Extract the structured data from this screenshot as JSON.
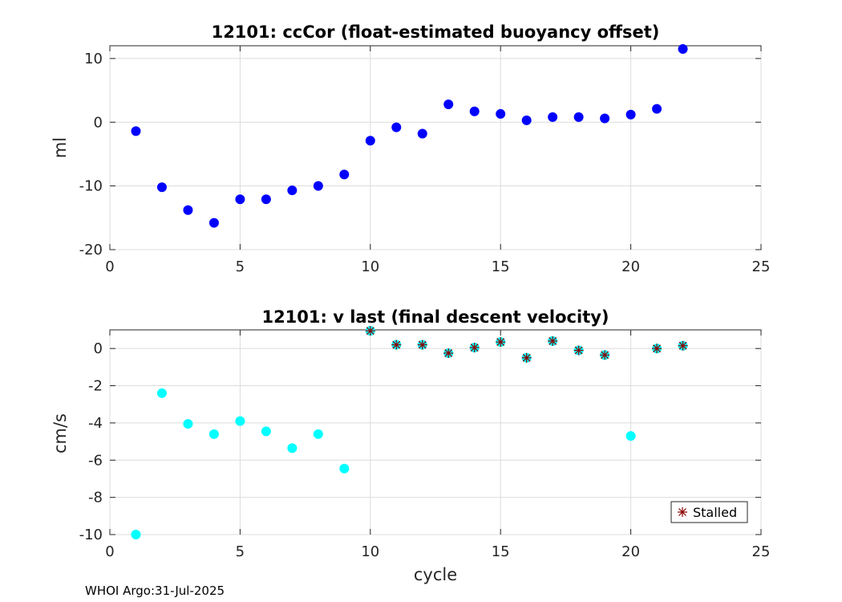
{
  "footer": "WHOI Argo:31-Jul-2025",
  "chart_data": [
    {
      "type": "scatter",
      "title": "12101: ccCor (float-estimated buoyancy offset)",
      "xlabel": "",
      "ylabel": "ml",
      "xlim": [
        0,
        25
      ],
      "ylim": [
        -20,
        12
      ],
      "xticks": [
        0,
        5,
        10,
        15,
        20,
        25
      ],
      "yticks": [
        -20,
        -10,
        0,
        10
      ],
      "xtick_labels": [
        "0",
        "5",
        "10",
        "15",
        "20",
        "25"
      ],
      "ytick_labels": [
        "-20",
        "-10",
        "0",
        "10"
      ],
      "grid": true,
      "series": [
        {
          "name": "ccCor",
          "marker": "circle",
          "color": "#0000ff",
          "x": [
            1,
            2,
            3,
            4,
            5,
            6,
            7,
            8,
            9,
            10,
            11,
            12,
            13,
            14,
            15,
            16,
            17,
            18,
            19,
            20,
            21,
            22
          ],
          "y": [
            -1.4,
            -10.2,
            -13.8,
            -15.8,
            -12.1,
            -12.1,
            -10.7,
            -10.0,
            -8.2,
            -2.9,
            -0.8,
            -1.8,
            2.8,
            1.7,
            1.3,
            0.3,
            0.8,
            0.8,
            0.6,
            1.2,
            2.1,
            11.5
          ]
        }
      ]
    },
    {
      "type": "scatter",
      "title": "12101: v last (final descent velocity)",
      "xlabel": "cycle",
      "ylabel": "cm/s",
      "xlim": [
        0,
        25
      ],
      "ylim": [
        -10,
        1
      ],
      "xticks": [
        0,
        5,
        10,
        15,
        20,
        25
      ],
      "yticks": [
        -10,
        -8,
        -6,
        -4,
        -2,
        0
      ],
      "xtick_labels": [
        "0",
        "5",
        "10",
        "15",
        "20",
        "25"
      ],
      "ytick_labels": [
        "-10",
        "-8",
        "-6",
        "-4",
        "-2",
        "0"
      ],
      "grid": true,
      "legend": {
        "placement": "bottom-right",
        "entries": [
          "Stalled"
        ]
      },
      "series": [
        {
          "name": "v last",
          "marker": "circle",
          "color": "#00ffff",
          "x": [
            1,
            2,
            3,
            4,
            5,
            6,
            7,
            8,
            9,
            10,
            11,
            12,
            13,
            14,
            15,
            16,
            17,
            18,
            19,
            20,
            21,
            22
          ],
          "y": [
            -10.0,
            -2.4,
            -4.05,
            -4.6,
            -3.9,
            -4.45,
            -5.35,
            -4.6,
            -6.45,
            0.95,
            0.2,
            0.2,
            -0.25,
            0.05,
            0.35,
            -0.5,
            0.4,
            -0.1,
            -0.35,
            -4.7,
            0.0,
            0.15
          ]
        },
        {
          "name": "Stalled",
          "marker": "asterisk",
          "color": "#8b0000",
          "x": [
            10,
            11,
            12,
            13,
            14,
            15,
            16,
            17,
            18,
            19,
            21,
            22
          ],
          "y": [
            0.95,
            0.2,
            0.2,
            -0.25,
            0.05,
            0.35,
            -0.5,
            0.4,
            -0.1,
            -0.35,
            0.0,
            0.15
          ]
        }
      ]
    }
  ]
}
